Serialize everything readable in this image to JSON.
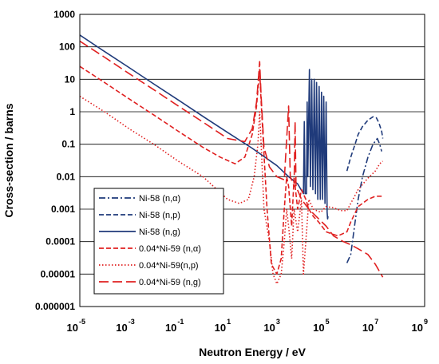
{
  "chart_data": {
    "type": "line",
    "xlabel": "Neutron Energy / eV",
    "ylabel": "Cross-section / barns",
    "x_scale": "log",
    "y_scale": "log",
    "xlim": [
      1e-05,
      1000000000
    ],
    "ylim": [
      1e-06,
      1000
    ],
    "grid": "horizontal",
    "legend_position": "bottom-left",
    "x_ticks": [
      {
        "value": 1e-05,
        "base": "10",
        "exp": "-5"
      },
      {
        "value": 0.001,
        "base": "10",
        "exp": "-3"
      },
      {
        "value": 0.1,
        "base": "10",
        "exp": "-1"
      },
      {
        "value": 10,
        "base": "10",
        "exp": "1"
      },
      {
        "value": 1000,
        "base": "10",
        "exp": "3"
      },
      {
        "value": 100000,
        "base": "10",
        "exp": "5"
      },
      {
        "value": 10000000,
        "base": "10",
        "exp": "7"
      },
      {
        "value": 1000000000,
        "base": "10",
        "exp": "9"
      }
    ],
    "y_ticks": [
      {
        "value": 1000,
        "label": "1000"
      },
      {
        "value": 100,
        "label": "100"
      },
      {
        "value": 10,
        "label": "10"
      },
      {
        "value": 1,
        "label": "1"
      },
      {
        "value": 0.1,
        "label": "0.1"
      },
      {
        "value": 0.01,
        "label": "0.01"
      },
      {
        "value": 0.001,
        "label": "0.001"
      },
      {
        "value": 0.0001,
        "label": "0.0001"
      },
      {
        "value": 1e-05,
        "label": "0.00001"
      },
      {
        "value": 1e-06,
        "label": "0.000001"
      }
    ],
    "series": [
      {
        "name": "Ni-58 (n,α)",
        "color": "#1f3a7a",
        "dash": "dashdot",
        "points": [
          [
            700000,
            2.2e-05
          ],
          [
            1000000,
            4e-05
          ],
          [
            1500000,
            0.0004
          ],
          [
            2000000,
            0.002
          ],
          [
            3000000,
            0.01
          ],
          [
            5000000,
            0.04
          ],
          [
            8000000,
            0.1
          ],
          [
            12000000,
            0.15
          ],
          [
            15000000,
            0.1
          ],
          [
            18000000,
            0.06
          ]
        ]
      },
      {
        "name": "Ni-58 (n,p)",
        "color": "#1f3a7a",
        "dash": "dash",
        "points": [
          [
            700000,
            0.015
          ],
          [
            1000000,
            0.04
          ],
          [
            1500000,
            0.1
          ],
          [
            2000000,
            0.2
          ],
          [
            3000000,
            0.35
          ],
          [
            5000000,
            0.55
          ],
          [
            8000000,
            0.7
          ],
          [
            11000000,
            0.65
          ],
          [
            14000000,
            0.45
          ],
          [
            18000000,
            0.25
          ],
          [
            20000000,
            0.15
          ]
        ]
      },
      {
        "name": "Ni-58 (n,g)",
        "color": "#1f3a7a",
        "dash": "solid",
        "points": [
          [
            1e-05,
            230
          ],
          [
            0.0001,
            72
          ],
          [
            0.001,
            23
          ],
          [
            0.01,
            7.2
          ],
          [
            0.1,
            2.3
          ],
          [
            1,
            0.72
          ],
          [
            10,
            0.23
          ],
          [
            100,
            0.075
          ],
          [
            1000,
            0.022
          ],
          [
            3000,
            0.01
          ],
          [
            7000,
            0.006
          ],
          [
            12000,
            0.003
          ],
          [
            13000,
            0.5
          ],
          [
            14000,
            0.003
          ],
          [
            16000,
            0.003
          ],
          [
            17000,
            2
          ],
          [
            18000,
            0.01
          ],
          [
            21000,
            20
          ],
          [
            23000,
            0.005
          ],
          [
            26000,
            10
          ],
          [
            29000,
            0.004
          ],
          [
            33000,
            10
          ],
          [
            37000,
            0.003
          ],
          [
            41000,
            8
          ],
          [
            46000,
            0.002
          ],
          [
            52000,
            6
          ],
          [
            58000,
            0.002
          ],
          [
            65000,
            4
          ],
          [
            72000,
            0.002
          ],
          [
            80000,
            3
          ],
          [
            90000,
            0.0015
          ],
          [
            100000,
            2
          ],
          [
            110000,
            0.0008
          ],
          [
            115000,
            0.0005
          ],
          [
            120000,
            0.0006
          ]
        ]
      },
      {
        "name": "0.04*Ni-59 (n,α)",
        "color": "#e02020",
        "dash": "dash",
        "points": [
          [
            1e-05,
            25
          ],
          [
            0.0001,
            8
          ],
          [
            0.001,
            2.5
          ],
          [
            0.01,
            0.8
          ],
          [
            0.1,
            0.25
          ],
          [
            1,
            0.08
          ],
          [
            5,
            0.04
          ],
          [
            20,
            0.025
          ],
          [
            50,
            0.04
          ],
          [
            100,
            0.2
          ],
          [
            150,
            1.5
          ],
          [
            200,
            20
          ],
          [
            230,
            2
          ],
          [
            300,
            0.05
          ],
          [
            400,
            0.001
          ],
          [
            600,
            2e-05
          ],
          [
            1000,
            1e-05
          ],
          [
            1500,
            3e-05
          ],
          [
            2000,
            0.001
          ],
          [
            2500,
            0.01
          ],
          [
            3000,
            0.005
          ],
          [
            4000,
            0.0003
          ],
          [
            5000,
            0.01
          ],
          [
            7000,
            0.001
          ],
          [
            10000,
            0.004
          ],
          [
            15000,
            0.002
          ],
          [
            20000,
            0.001
          ],
          [
            30000,
            0.0006
          ],
          [
            50000,
            0.0004
          ],
          [
            100000,
            0.0002
          ],
          [
            300000,
            0.00015
          ],
          [
            700000,
            0.0002
          ],
          [
            1000000,
            0.0004
          ],
          [
            2000000,
            0.0012
          ],
          [
            5000000,
            0.002
          ],
          [
            10000000,
            0.0025
          ],
          [
            20000000,
            0.0025
          ]
        ]
      },
      {
        "name": "0.04*Ni-59(n,p)",
        "color": "#e02020",
        "dash": "dot",
        "points": [
          [
            1e-05,
            3
          ],
          [
            0.0001,
            1
          ],
          [
            0.001,
            0.3
          ],
          [
            0.01,
            0.1
          ],
          [
            0.1,
            0.03
          ],
          [
            1,
            0.01
          ],
          [
            10,
            0.002
          ],
          [
            30,
            0.0015
          ],
          [
            70,
            0.002
          ],
          [
            120,
            0.01
          ],
          [
            170,
            0.1
          ],
          [
            200,
            1
          ],
          [
            230,
            0.1
          ],
          [
            300,
            0.001
          ],
          [
            500,
            0.0001
          ],
          [
            700,
            1e-05
          ],
          [
            1000,
            5e-06
          ],
          [
            1500,
            1e-05
          ],
          [
            2000,
            0.0001
          ],
          [
            2500,
            0.001
          ],
          [
            3000,
            0.0003
          ],
          [
            4000,
            3e-05
          ],
          [
            5000,
            0.001
          ],
          [
            7000,
            0.0002
          ],
          [
            10000,
            0.002
          ],
          [
            12000,
            1e-05
          ],
          [
            20000,
            0.002
          ],
          [
            30000,
            0.001
          ],
          [
            60000,
            0.0008
          ],
          [
            100000,
            0.0012
          ],
          [
            200000,
            0.0011
          ],
          [
            400000,
            0.0009
          ],
          [
            700000,
            0.0009
          ],
          [
            1000000,
            0.0015
          ],
          [
            2000000,
            0.004
          ],
          [
            5000000,
            0.009
          ],
          [
            10000000,
            0.015
          ],
          [
            15000000,
            0.025
          ],
          [
            20000000,
            0.03
          ]
        ]
      },
      {
        "name": "0.04*Ni-59 (n,g)",
        "color": "#e02020",
        "dash": "longdash",
        "points": [
          [
            1e-05,
            150
          ],
          [
            0.0001,
            48
          ],
          [
            0.001,
            15
          ],
          [
            0.01,
            4.8
          ],
          [
            0.1,
            1.5
          ],
          [
            1,
            0.48
          ],
          [
            10,
            0.15
          ],
          [
            50,
            0.12
          ],
          [
            100,
            0.3
          ],
          [
            150,
            2
          ],
          [
            200,
            35
          ],
          [
            230,
            3
          ],
          [
            300,
            0.08
          ],
          [
            500,
            0.02
          ],
          [
            1000,
            0.01
          ],
          [
            2000,
            0.008
          ],
          [
            3000,
            1.5
          ],
          [
            3500,
            0.01
          ],
          [
            5000,
            0.005
          ],
          [
            5500,
            0.5
          ],
          [
            6000,
            0.005
          ],
          [
            8000,
            0.003
          ],
          [
            10000,
            0.002
          ],
          [
            20000,
            0.001
          ],
          [
            50000,
            0.0005
          ],
          [
            100000,
            0.0003
          ],
          [
            200000,
            0.00015
          ],
          [
            500000,
            0.0001
          ],
          [
            1000000,
            8e-05
          ],
          [
            2000000,
            6e-05
          ],
          [
            5000000,
            4e-05
          ],
          [
            10000000,
            2e-05
          ],
          [
            20000000,
            8e-06
          ]
        ]
      }
    ]
  }
}
